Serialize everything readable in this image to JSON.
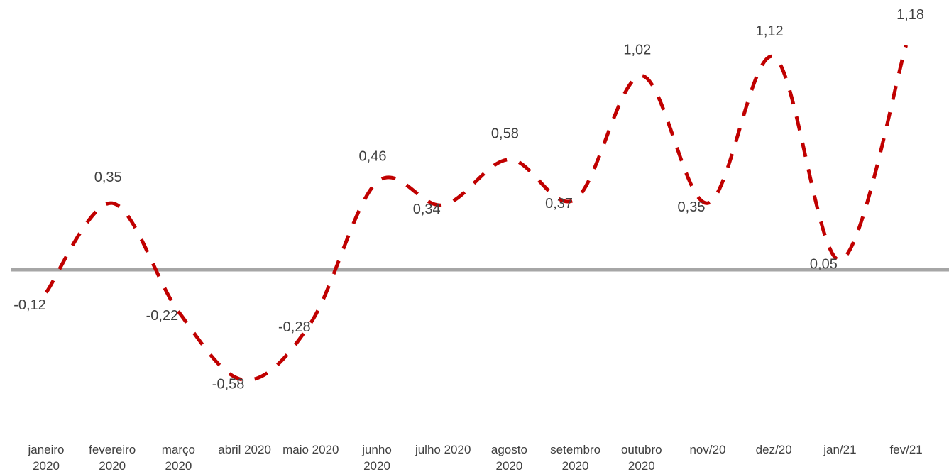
{
  "chart_data": {
    "type": "line",
    "categories": [
      [
        "janeiro",
        "2020"
      ],
      [
        "fevereiro",
        "2020"
      ],
      [
        "março",
        "2020"
      ],
      [
        "abril 2020"
      ],
      [
        "maio 2020"
      ],
      [
        "junho",
        "2020"
      ],
      [
        "julho 2020"
      ],
      [
        "agosto",
        "2020"
      ],
      [
        "setembro",
        "2020"
      ],
      [
        "outubro",
        "2020"
      ],
      [
        "nov/20"
      ],
      [
        "dez/20"
      ],
      [
        "jan/21"
      ],
      [
        "fev/21"
      ]
    ],
    "values": [
      -0.12,
      0.35,
      -0.22,
      -0.58,
      -0.28,
      0.46,
      0.34,
      0.58,
      0.37,
      1.02,
      0.35,
      1.12,
      0.05,
      1.18
    ],
    "value_labels": [
      "-0,12",
      "0,35",
      "-0,22",
      "-0,58",
      "-0,28",
      "0,46",
      "0,34",
      "0,58",
      "0,37",
      "1,02",
      "0,35",
      "1,12",
      "0,05",
      "1,18"
    ],
    "ylim": [
      -0.58,
      1.12
    ],
    "line_style": "dashed",
    "colors": {
      "line": "#c00000",
      "zero_axis": "#a6a6a6",
      "text": "#404040"
    },
    "grid": false,
    "legend": "none"
  }
}
